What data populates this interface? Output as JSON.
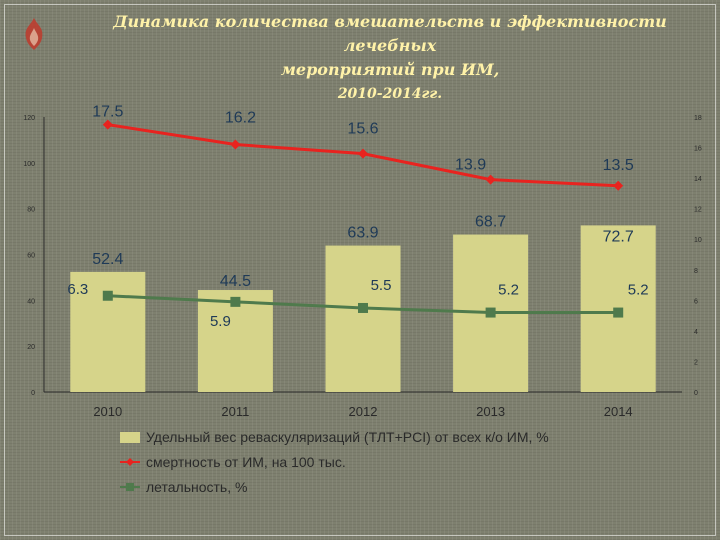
{
  "slide": {
    "title_line1": "Динамика количества вмешательств и эффективности лечебных",
    "title_line2": "мероприятий при ИМ,",
    "title_line3": "2010-2014гг.",
    "logo_icon": "flame-emblem-icon"
  },
  "colors": {
    "bars": "#d6d48a",
    "mortality_line": "#e8231f",
    "lethality_line": "#4f7a4c",
    "data_label": "#1f3a57",
    "axis_text": "#2a2a2a",
    "legend_text": "#2a2a2a"
  },
  "chart_data": {
    "type": "bar",
    "categories": [
      "2010",
      "2011",
      "2012",
      "2013",
      "2014"
    ],
    "y_left": {
      "ylim": [
        0,
        120
      ],
      "ticks": [
        "0",
        "20",
        "40",
        "60",
        "80",
        "100",
        "120"
      ]
    },
    "y_right": {
      "ylim": [
        0,
        18
      ],
      "ticks": [
        "0",
        "2",
        "4",
        "6",
        "8",
        "10",
        "12",
        "14",
        "16",
        "18"
      ]
    },
    "grid": false,
    "legend_position": "bottom",
    "series": [
      {
        "name": "Удельный вес реваскуляризаций (ТЛТ+PCI) от всех к/о ИМ, %",
        "kind": "bar",
        "axis": "left",
        "values": [
          52.4,
          44.5,
          63.9,
          68.7,
          72.7
        ],
        "labels": [
          "52.4",
          "44.5",
          "63.9",
          "68.7",
          "72.7"
        ]
      },
      {
        "name": "смертность от ИМ, на 100 тыс.",
        "kind": "line",
        "marker": "diamond",
        "axis": "right",
        "values": [
          17.5,
          16.2,
          15.6,
          13.9,
          13.5
        ],
        "labels": [
          "17.5",
          "16.2",
          "15.6",
          "13.9",
          "13.5"
        ]
      },
      {
        "name": "летальность, %",
        "kind": "line",
        "marker": "square",
        "axis": "right",
        "values": [
          6.3,
          5.9,
          5.5,
          5.2,
          5.2
        ],
        "labels": [
          "6.3",
          "5.9",
          "5.5",
          "5.2",
          "5.2"
        ]
      }
    ]
  }
}
